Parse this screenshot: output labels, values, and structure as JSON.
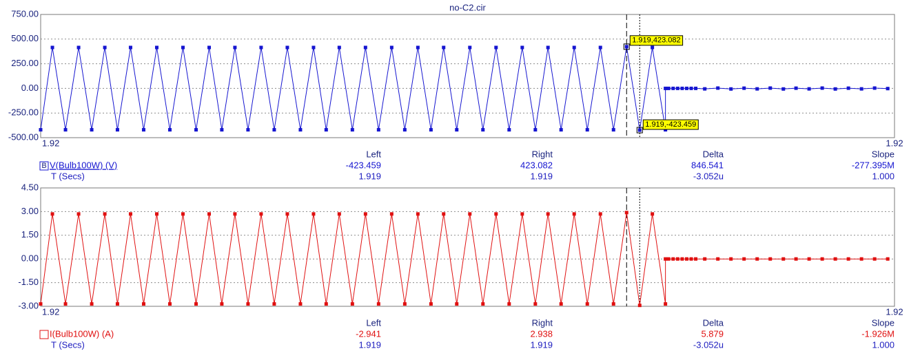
{
  "chart_data": [
    {
      "type": "line",
      "title": "no-C2.cir",
      "x": [
        1.91772,
        1.917746,
        1.917775,
        1.917804,
        1.917833,
        1.917862,
        1.91789,
        1.917919,
        1.917948,
        1.917977,
        1.918006,
        1.918035,
        1.918064,
        1.918093,
        1.918121,
        1.91815,
        1.918179,
        1.918208,
        1.918237,
        1.918266,
        1.918295,
        1.918324,
        1.918352,
        1.918381,
        1.91841,
        1.918439,
        1.918468,
        1.918497,
        1.918526,
        1.918555,
        1.918584,
        1.918612,
        1.918641,
        1.91867,
        1.918699,
        1.918728,
        1.918757,
        1.918786,
        1.918815,
        1.918843,
        1.918872,
        1.918901,
        1.91893,
        1.918959,
        1.918988,
        1.919017,
        1.919046,
        1.919074,
        1.919103,
        1.919103,
        1.91911,
        1.91912,
        1.91913,
        1.91914,
        1.91915,
        1.91916,
        1.91917,
        1.91919,
        1.919219,
        1.919248,
        1.919277,
        1.919306,
        1.919335,
        1.919364,
        1.919392,
        1.919421,
        1.91945,
        1.919479,
        1.919508,
        1.919537,
        1.919566,
        1.919595
      ],
      "series": [
        {
          "name": "V(Bulb100W) (V)",
          "marker_label": "B",
          "color": "#1515d0",
          "values": [
            -420,
            415,
            -420,
            415,
            -420,
            415,
            -420,
            415,
            -420,
            415,
            -420,
            415,
            -420,
            415,
            -420,
            415,
            -420,
            415,
            -420,
            415,
            -420,
            415,
            -420,
            415,
            -420,
            415,
            -420,
            415,
            -420,
            415,
            -420,
            415,
            -420,
            415,
            -420,
            415,
            -420,
            415,
            -420,
            415,
            -420,
            415,
            -420,
            415,
            -420,
            423.082,
            -423.459,
            415,
            -420,
            0,
            0,
            0,
            0,
            0,
            0,
            0,
            0,
            -5,
            3,
            -6,
            2,
            -5,
            3,
            -6,
            2,
            -5,
            3,
            -6,
            2,
            -5,
            3,
            -2
          ],
          "cursor_values": [
            "-423.459",
            "423.082",
            "846.541",
            "-277.395M"
          ]
        }
      ],
      "xlim": [
        1.91772,
        1.91961
      ],
      "xticks": [
        {
          "value": 1.91772,
          "label": "1.92"
        },
        {
          "value": 1.91961,
          "label": "1.92"
        }
      ],
      "ylim": [
        -500,
        750
      ],
      "yticks": [
        {
          "value": 750,
          "label": "750.00"
        },
        {
          "value": 500,
          "label": "500.00"
        },
        {
          "value": 250,
          "label": "250.00"
        },
        {
          "value": 0,
          "label": "0.00"
        },
        {
          "value": -250,
          "label": "-250.00"
        },
        {
          "value": -500,
          "label": "-500.00"
        }
      ],
      "grid": true,
      "cursors": [
        {
          "x": 1.919017,
          "y": 423.082,
          "label": "1.919,423.082",
          "style": "dashed"
        },
        {
          "x": 1.919046,
          "y": -423.459,
          "label": "1.919,-423.459",
          "style": "dotted"
        }
      ],
      "cursor_table": {
        "columns": [
          "Left",
          "Right",
          "Delta",
          "Slope"
        ],
        "rows": [
          {
            "label": "T (Secs)",
            "values": [
              "1.919",
              "1.919",
              "-3.052u",
              "1.000"
            ]
          }
        ]
      }
    },
    {
      "type": "line",
      "x": [
        1.91772,
        1.917746,
        1.917775,
        1.917804,
        1.917833,
        1.917862,
        1.91789,
        1.917919,
        1.917948,
        1.917977,
        1.918006,
        1.918035,
        1.918064,
        1.918093,
        1.918121,
        1.91815,
        1.918179,
        1.918208,
        1.918237,
        1.918266,
        1.918295,
        1.918324,
        1.918352,
        1.918381,
        1.91841,
        1.918439,
        1.918468,
        1.918497,
        1.918526,
        1.918555,
        1.918584,
        1.918612,
        1.918641,
        1.91867,
        1.918699,
        1.918728,
        1.918757,
        1.918786,
        1.918815,
        1.918843,
        1.918872,
        1.918901,
        1.91893,
        1.918959,
        1.918988,
        1.919017,
        1.919046,
        1.919074,
        1.919103,
        1.919103,
        1.91911,
        1.91912,
        1.91913,
        1.91914,
        1.91915,
        1.91916,
        1.91917,
        1.91919,
        1.919219,
        1.919248,
        1.919277,
        1.919306,
        1.919335,
        1.919364,
        1.919392,
        1.919421,
        1.91945,
        1.919479,
        1.919508,
        1.919537,
        1.919566,
        1.919595
      ],
      "series": [
        {
          "name": "I(Bulb100W) (A)",
          "color": "#e01010",
          "values": [
            -2.85,
            2.85,
            -2.85,
            2.85,
            -2.85,
            2.85,
            -2.85,
            2.85,
            -2.85,
            2.85,
            -2.85,
            2.85,
            -2.85,
            2.85,
            -2.85,
            2.85,
            -2.85,
            2.85,
            -2.85,
            2.85,
            -2.85,
            2.85,
            -2.85,
            2.85,
            -2.85,
            2.85,
            -2.85,
            2.85,
            -2.85,
            2.85,
            -2.85,
            2.85,
            -2.85,
            2.85,
            -2.85,
            2.85,
            -2.85,
            2.85,
            -2.85,
            2.85,
            -2.85,
            2.85,
            -2.85,
            2.85,
            -2.85,
            2.938,
            -2.941,
            2.85,
            -2.85,
            0,
            0,
            0,
            0,
            0,
            0,
            0,
            0,
            0,
            0,
            0,
            0,
            0,
            0,
            0,
            0,
            0,
            0,
            0,
            0,
            0,
            0,
            0
          ],
          "cursor_values": [
            "-2.941",
            "2.938",
            "5.879",
            "-1.926M"
          ]
        }
      ],
      "xlim": [
        1.91772,
        1.91961
      ],
      "xticks": [
        {
          "value": 1.91772,
          "label": "1.92"
        },
        {
          "value": 1.91961,
          "label": "1.92"
        }
      ],
      "ylim": [
        -3,
        4.5
      ],
      "yticks": [
        {
          "value": 4.5,
          "label": "4.50"
        },
        {
          "value": 3,
          "label": "3.00"
        },
        {
          "value": 1.5,
          "label": "1.50"
        },
        {
          "value": 0,
          "label": "0.00"
        },
        {
          "value": -1.5,
          "label": "-1.50"
        },
        {
          "value": -3,
          "label": "-3.00"
        }
      ],
      "grid": true,
      "cursors": [
        {
          "x": 1.919017,
          "style": "dashed"
        },
        {
          "x": 1.919046,
          "style": "dotted"
        }
      ],
      "cursor_table": {
        "columns": [
          "Left",
          "Right",
          "Delta",
          "Slope"
        ],
        "rows": [
          {
            "label": "T (Secs)",
            "values": [
              "1.919",
              "1.919",
              "-3.052u",
              "1.000"
            ]
          }
        ]
      }
    }
  ]
}
